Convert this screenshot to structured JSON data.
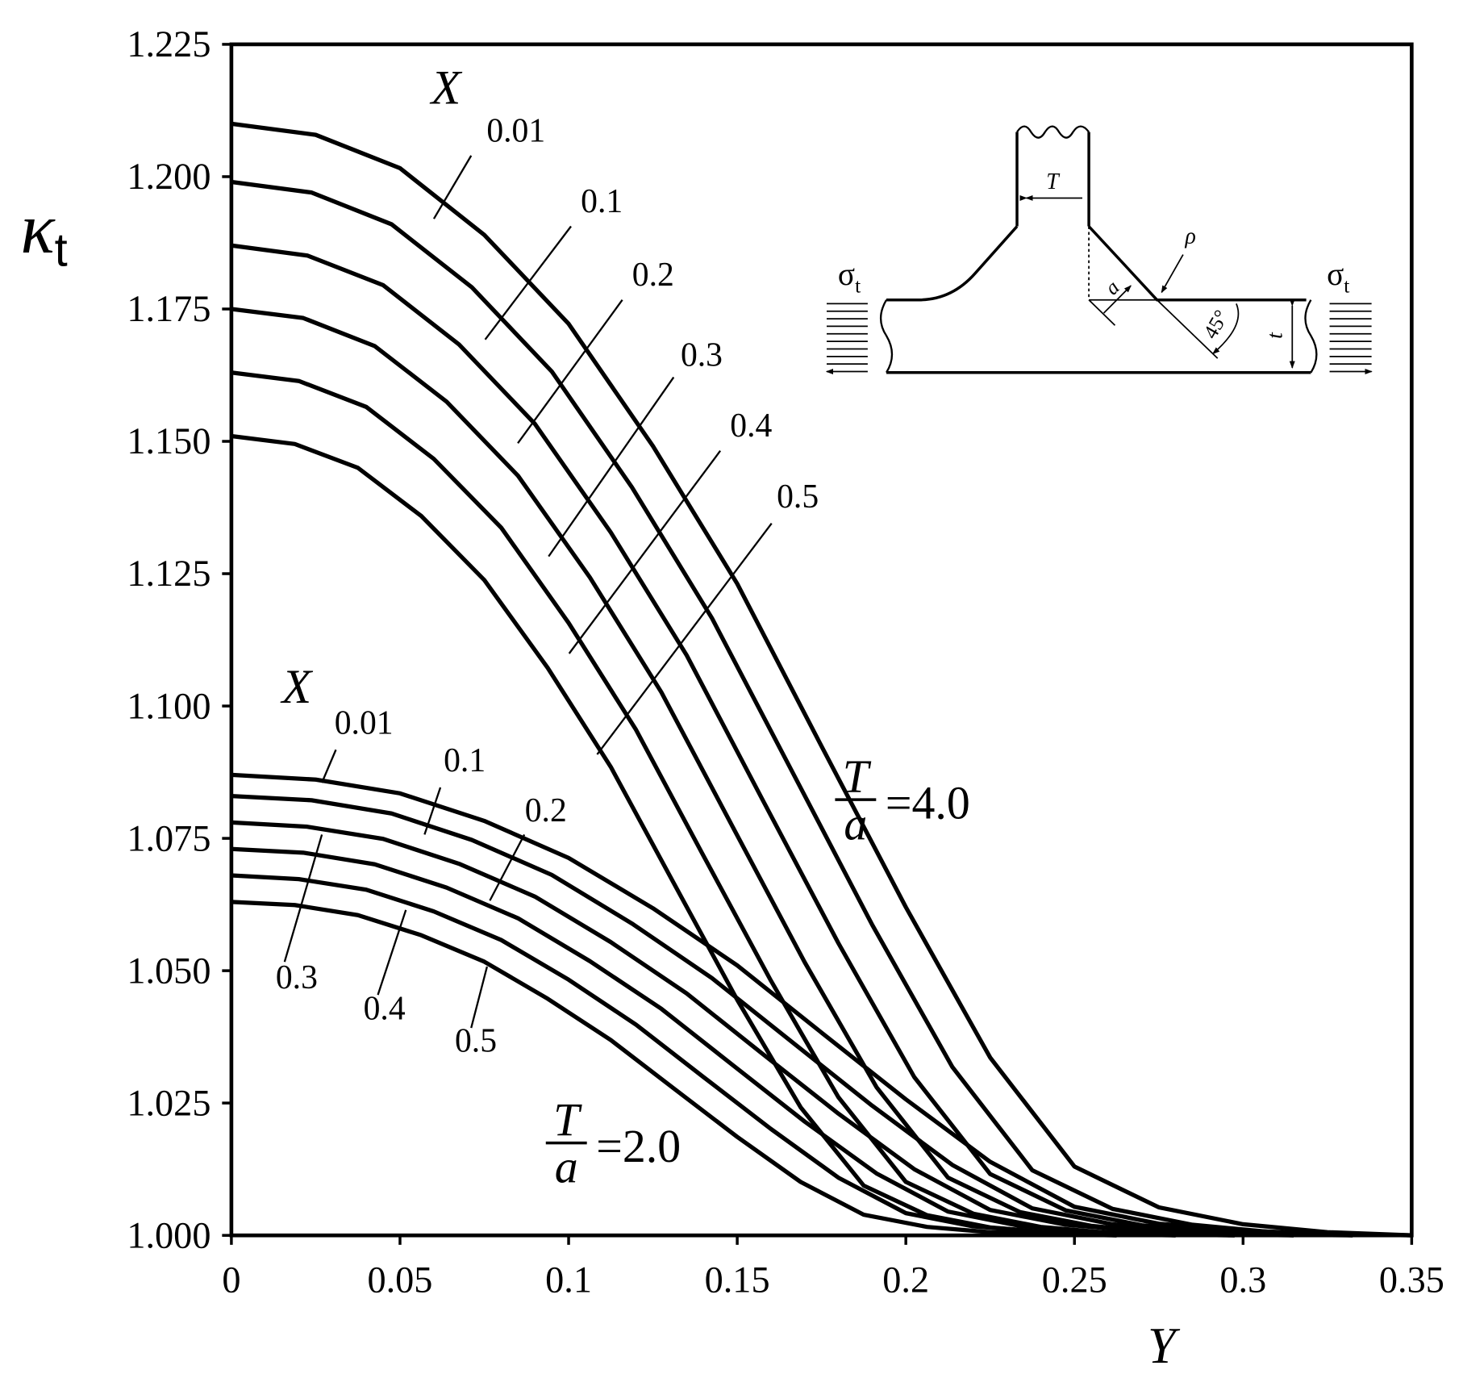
{
  "chart_data": {
    "type": "line",
    "xlabel": "Y",
    "ylabel": "κ",
    "ylabel_sub": "t",
    "xlim": [
      0,
      0.35
    ],
    "xticks": [
      0,
      0.05,
      0.1,
      0.15,
      0.2,
      0.25,
      0.3,
      0.35
    ],
    "ylim": [
      1,
      1.225
    ],
    "yticks": [
      {
        "value": 1,
        "label": "1.000"
      },
      1.025,
      {
        "value": 1.05,
        "label": "1.050"
      },
      1.075,
      {
        "value": 1.1,
        "label": "1.100"
      },
      1.125,
      {
        "value": 1.15,
        "label": "1.150"
      },
      1.175,
      {
        "value": 1.2,
        "label": "1.200"
      },
      1.225
    ],
    "group_labels": [
      "X",
      "X"
    ],
    "annotations": [
      {
        "numerator": "T",
        "denominator": "a",
        "text": "=4.0"
      },
      {
        "numerator": "T",
        "denominator": "a",
        "text": "=2.0"
      }
    ],
    "series": [
      {
        "name": "0.01",
        "color": "#000000",
        "x": [
          0,
          0.025,
          0.05,
          0.075,
          0.1,
          0.125,
          0.15,
          0.175,
          0.2,
          0.225,
          0.25,
          0.275,
          0.3,
          0.325,
          0.35
        ],
        "values": [
          1.21,
          1.2079,
          1.2016,
          1.189,
          1.1722,
          1.1491,
          1.1231,
          1.0924,
          1.062,
          1.0336,
          1.013,
          1.0053,
          1.0021,
          1.0006,
          1.0
        ]
      },
      {
        "name": "0.1",
        "color": "#000000",
        "x": [
          0,
          0.0238,
          0.0475,
          0.0713,
          0.095,
          0.1188,
          0.1425,
          0.1663,
          0.19,
          0.2138,
          0.2375,
          0.2613,
          0.285,
          0.3088,
          0.3325
        ],
        "values": [
          1.199,
          1.197,
          1.191,
          1.1791,
          1.1632,
          1.1413,
          1.1166,
          1.0876,
          1.0587,
          1.0318,
          1.0123,
          1.005,
          1.002,
          1.0006,
          1.0
        ]
      },
      {
        "name": "0.2",
        "color": "#000000",
        "x": [
          0,
          0.0225,
          0.045,
          0.0675,
          0.09,
          0.1125,
          0.135,
          0.1575,
          0.18,
          0.2025,
          0.225,
          0.2475,
          0.27,
          0.2925,
          0.315
        ],
        "values": [
          1.187,
          1.1851,
          1.1795,
          1.1683,
          1.1533,
          1.1328,
          1.1096,
          1.0823,
          1.0552,
          1.0299,
          1.0116,
          1.0047,
          1.0019,
          1.0006,
          1.0
        ]
      },
      {
        "name": "0.3",
        "color": "#000000",
        "x": [
          0,
          0.0213,
          0.0425,
          0.0638,
          0.085,
          0.1063,
          0.1275,
          0.1488,
          0.17,
          0.1913,
          0.2125,
          0.2338,
          0.255,
          0.2763,
          0.2975
        ],
        "values": [
          1.175,
          1.1733,
          1.168,
          1.1575,
          1.1435,
          1.1243,
          1.1026,
          1.077,
          1.0516,
          1.028,
          1.0109,
          1.0044,
          1.0018,
          1.0005,
          1.0
        ]
      },
      {
        "name": "0.4",
        "color": "#000000",
        "x": [
          0,
          0.02,
          0.04,
          0.06,
          0.08,
          0.1,
          0.12,
          0.14,
          0.16,
          0.18,
          0.2,
          0.22,
          0.24,
          0.26,
          0.28
        ],
        "values": [
          1.163,
          1.1614,
          1.1565,
          1.1467,
          1.1337,
          1.1157,
          1.0955,
          1.0717,
          1.0481,
          1.0261,
          1.0101,
          1.0041,
          1.0016,
          1.0005,
          1.0
        ]
      },
      {
        "name": "0.5",
        "color": "#000000",
        "x": [
          0,
          0.0188,
          0.0375,
          0.0563,
          0.075,
          0.0938,
          0.1125,
          0.1313,
          0.15,
          0.1688,
          0.1875,
          0.2063,
          0.225,
          0.2438,
          0.2625
        ],
        "values": [
          1.151,
          1.1495,
          1.145,
          1.1359,
          1.1238,
          1.1072,
          1.0885,
          1.0664,
          1.0445,
          1.0242,
          1.0094,
          1.0038,
          1.0015,
          1.0005,
          1.0
        ]
      },
      {
        "name": "0.01",
        "color": "#000000",
        "x": [
          0,
          0.025,
          0.05,
          0.075,
          0.1,
          0.125,
          0.15,
          0.175,
          0.2,
          0.225,
          0.25,
          0.275,
          0.3,
          0.325,
          0.35
        ],
        "values": [
          1.087,
          1.0861,
          1.0835,
          1.0783,
          1.0713,
          1.0618,
          1.051,
          1.0383,
          1.0257,
          1.0139,
          1.0054,
          1.0022,
          1.0009,
          1.0003,
          1.0
        ]
      },
      {
        "name": "0.1",
        "color": "#000000",
        "x": [
          0,
          0.0238,
          0.0475,
          0.0713,
          0.095,
          0.1188,
          0.1425,
          0.1663,
          0.19,
          0.2138,
          0.2375,
          0.2613,
          0.285,
          0.3088,
          0.3325
        ],
        "values": [
          1.083,
          1.0822,
          1.0797,
          1.0747,
          1.0681,
          1.0589,
          1.0486,
          1.0365,
          1.0245,
          1.0133,
          1.0051,
          1.0021,
          1.0008,
          1.0002,
          1.0
        ]
      },
      {
        "name": "0.2",
        "color": "#000000",
        "x": [
          0,
          0.0225,
          0.045,
          0.0675,
          0.09,
          0.1125,
          0.135,
          0.1575,
          0.18,
          0.2025,
          0.225,
          0.2475,
          0.27,
          0.2925,
          0.315
        ],
        "values": [
          1.078,
          1.0772,
          1.0749,
          1.0702,
          1.064,
          1.0554,
          1.0457,
          1.0343,
          1.023,
          1.0125,
          1.0048,
          1.002,
          1.0008,
          1.0002,
          1.0
        ]
      },
      {
        "name": "0.3",
        "color": "#000000",
        "x": [
          0,
          0.0213,
          0.0425,
          0.0638,
          0.085,
          0.1063,
          0.1275,
          0.1488,
          0.17,
          0.1913,
          0.2125,
          0.2338,
          0.255,
          0.2763,
          0.2975
        ],
        "values": [
          1.073,
          1.0723,
          1.0701,
          1.0657,
          1.0599,
          1.0518,
          1.0428,
          1.0321,
          1.0215,
          1.0117,
          1.0045,
          1.0018,
          1.0007,
          1.0002,
          1.0
        ]
      },
      {
        "name": "0.4",
        "color": "#000000",
        "x": [
          0,
          0.02,
          0.04,
          0.06,
          0.08,
          0.1,
          0.12,
          0.14,
          0.16,
          0.18,
          0.2,
          0.22,
          0.24,
          0.26,
          0.28
        ],
        "values": [
          1.068,
          1.0673,
          1.0653,
          1.0612,
          1.0558,
          1.0483,
          1.0398,
          1.0299,
          1.0201,
          1.0109,
          1.0042,
          1.0017,
          1.0007,
          1.0002,
          1.0
        ]
      },
      {
        "name": "0.5",
        "color": "#000000",
        "x": [
          0,
          0.0188,
          0.0375,
          0.0563,
          0.075,
          0.0938,
          0.1125,
          0.1313,
          0.15,
          0.1688,
          0.1875,
          0.2063,
          0.225,
          0.2438,
          0.2625
        ],
        "values": [
          1.063,
          1.0624,
          1.0605,
          1.0567,
          1.0517,
          1.0447,
          1.0369,
          1.0277,
          1.0186,
          1.0101,
          1.0039,
          1.0016,
          1.0006,
          1.0002,
          1.0
        ]
      }
    ],
    "inset": {
      "width_label": "T",
      "radius_label": "ρ",
      "leg_label": "a",
      "angle_label": "45°",
      "thickness_label": "t",
      "stress_symbol": "σ",
      "stress_subscript": "t"
    }
  }
}
